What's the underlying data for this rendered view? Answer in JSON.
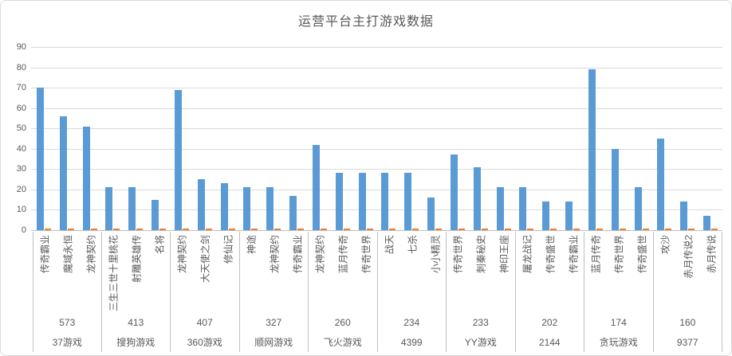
{
  "title": "运营平台主打游戏数据",
  "colors": {
    "bar_primary": "#5b9bd5",
    "bar_secondary": "#ed7d31",
    "gridline": "#d9d9d9",
    "axis_line": "#bfbfbf",
    "text": "#595959"
  },
  "chart_data": {
    "type": "bar",
    "title": "运营平台主打游戏数据",
    "ylim": [
      0,
      90
    ],
    "ytick_step": 10,
    "y_ticks": [
      "0",
      "10",
      "20",
      "30",
      "40",
      "50",
      "60",
      "70",
      "80",
      "90"
    ],
    "grid": true,
    "legend": "none",
    "secondary_series": {
      "description": "small orange marker at baseline beside every bar",
      "approx_value": 0.5,
      "color": "#ed7d31"
    },
    "groups": [
      {
        "platform": "37游戏",
        "total": "573",
        "games": [
          {
            "name": "传奇霸业",
            "value": 70
          },
          {
            "name": "魔域永恒",
            "value": 56
          },
          {
            "name": "龙神契约",
            "value": 51
          }
        ]
      },
      {
        "platform": "搜狗游戏",
        "total": "413",
        "games": [
          {
            "name": "三生三世十里桃花",
            "value": 21
          },
          {
            "name": "射雕英雄传",
            "value": 21
          },
          {
            "name": "名将",
            "value": 15
          }
        ]
      },
      {
        "platform": "360游戏",
        "total": "407",
        "games": [
          {
            "name": "龙神契约",
            "value": 69
          },
          {
            "name": "大天使之剑",
            "value": 25
          },
          {
            "name": "修仙记",
            "value": 23
          }
        ]
      },
      {
        "platform": "顺网游戏",
        "total": "327",
        "games": [
          {
            "name": "神途",
            "value": 21
          },
          {
            "name": "龙神契约",
            "value": 21
          },
          {
            "name": "传奇霸业",
            "value": 17
          }
        ]
      },
      {
        "platform": "飞火游戏",
        "total": "260",
        "games": [
          {
            "name": "龙神契约",
            "value": 42
          },
          {
            "name": "蓝月传奇",
            "value": 28
          },
          {
            "name": "传奇世界",
            "value": 28
          }
        ]
      },
      {
        "platform": "4399",
        "total": "234",
        "games": [
          {
            "name": "战天",
            "value": 28
          },
          {
            "name": "七杀",
            "value": 28
          },
          {
            "name": "小小精灵",
            "value": 16
          }
        ]
      },
      {
        "platform": "YY游戏",
        "total": "233",
        "games": [
          {
            "name": "传奇世界",
            "value": 37
          },
          {
            "name": "刺秦秘史",
            "value": 31
          },
          {
            "name": "神印王座",
            "value": 21
          }
        ]
      },
      {
        "platform": "2144",
        "total": "202",
        "games": [
          {
            "name": "屠龙战记",
            "value": 21
          },
          {
            "name": "传奇盛世",
            "value": 14
          },
          {
            "name": "传奇霸业",
            "value": 14
          }
        ]
      },
      {
        "platform": "贪玩游戏",
        "total": "174",
        "games": [
          {
            "name": "蓝月传奇",
            "value": 79
          },
          {
            "name": "传奇世界",
            "value": 40
          },
          {
            "name": "传奇盛世",
            "value": 21
          }
        ]
      },
      {
        "platform": "9377",
        "total": "160",
        "games": [
          {
            "name": "攻沙",
            "value": 45
          },
          {
            "name": "赤月传说2",
            "value": 14
          },
          {
            "name": "赤月传说",
            "value": 7
          }
        ]
      }
    ]
  }
}
